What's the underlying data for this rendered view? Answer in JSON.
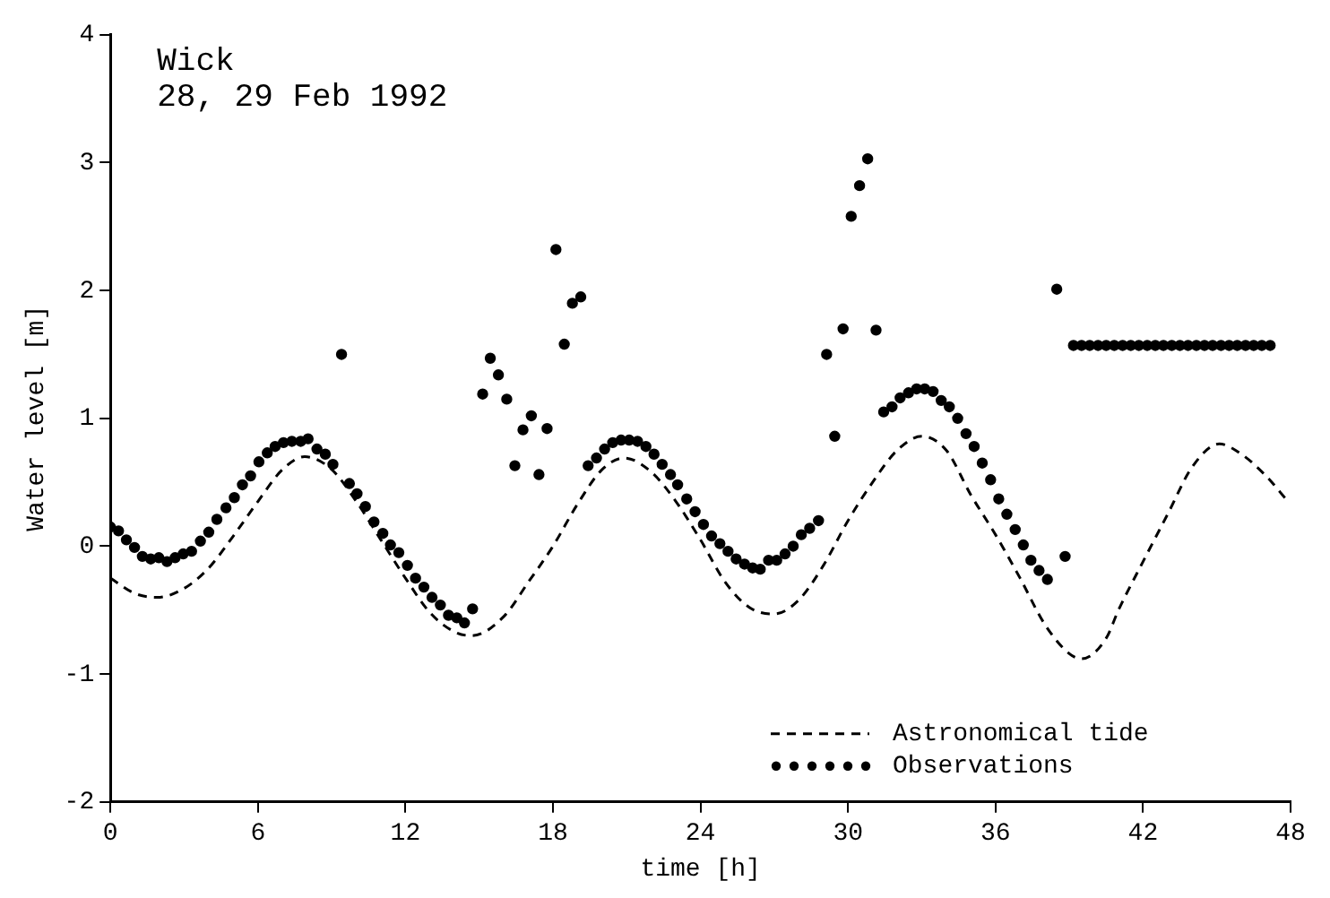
{
  "chart_data": {
    "type": "line",
    "title": "Wick",
    "subtitle": "28, 29 Feb 1992",
    "xlabel": "time [h]",
    "ylabel": "Water level [m]",
    "xlim": [
      0,
      48
    ],
    "xticks": [
      0,
      6,
      12,
      18,
      24,
      30,
      36,
      42,
      48
    ],
    "ylim": [
      -2,
      4
    ],
    "yticks": [
      -2,
      -1,
      0,
      1,
      2,
      3,
      4
    ],
    "grid": false,
    "legend": "bottom right",
    "series": [
      {
        "name": "Astronomical tide",
        "type": "line",
        "color": "#000000",
        "line_style": "dashed",
        "marker": "none",
        "x": [
          0,
          1,
          1.9,
          3,
          4,
          5,
          6,
          7,
          7.9,
          9,
          10,
          11,
          12,
          13,
          14,
          14.7,
          16,
          17,
          18,
          19,
          20,
          20.9,
          22,
          23,
          24,
          25,
          26,
          27,
          28,
          29,
          30,
          31,
          32,
          33,
          34,
          35,
          36,
          37,
          38,
          39,
          39.5,
          40.5,
          41,
          42,
          43,
          44,
          45.1,
          46,
          47,
          47.85
        ],
        "values": [
          -0.25,
          -0.37,
          -0.4,
          -0.33,
          -0.17,
          0.08,
          0.35,
          0.6,
          0.7,
          0.6,
          0.35,
          0.05,
          -0.25,
          -0.52,
          -0.67,
          -0.7,
          -0.55,
          -0.28,
          0,
          0.33,
          0.6,
          0.69,
          0.58,
          0.35,
          0.05,
          -0.28,
          -0.48,
          -0.53,
          -0.42,
          -0.15,
          0.2,
          0.5,
          0.75,
          0.86,
          0.75,
          0.4,
          0.09,
          -0.25,
          -0.61,
          -0.84,
          -0.88,
          -0.72,
          -0.5,
          -0.12,
          0.25,
          0.62,
          0.8,
          0.72,
          0.55,
          0.36
        ]
      },
      {
        "name": "Observations",
        "type": "scatter",
        "color": "#000000",
        "marker": "circle",
        "x": [
          0,
          0.33,
          0.65,
          0.98,
          1.3,
          1.64,
          1.97,
          2.3,
          2.63,
          2.96,
          3.3,
          3.66,
          4,
          4.33,
          4.7,
          5.04,
          5.37,
          5.7,
          6.04,
          6.38,
          6.7,
          7.04,
          7.38,
          7.74,
          8.04,
          8.4,
          8.74,
          9.05,
          9.4,
          9.72,
          10.03,
          10.37,
          10.72,
          11.08,
          11.39,
          11.73,
          12.08,
          12.41,
          12.75,
          13.08,
          13.42,
          13.75,
          14.09,
          14.4,
          14.73,
          15.14,
          15.45,
          15.78,
          16.12,
          16.45,
          16.78,
          17.12,
          17.43,
          17.76,
          18.12,
          18.46,
          18.79,
          19.13,
          19.43,
          19.77,
          20.1,
          20.43,
          20.77,
          21.1,
          21.44,
          21.78,
          22.11,
          22.44,
          22.78,
          23.07,
          23.44,
          23.78,
          24.12,
          24.45,
          24.79,
          25.12,
          25.45,
          25.79,
          26.12,
          26.43,
          26.77,
          27.1,
          27.44,
          27.77,
          28.1,
          28.44,
          28.8,
          29.13,
          29.46,
          29.8,
          30.13,
          30.47,
          30.8,
          31.14,
          31.45,
          31.79,
          32.12,
          32.46,
          32.79,
          33.12,
          33.46,
          33.79,
          34.12,
          34.46,
          34.8,
          35.13,
          35.46,
          35.8,
          36.13,
          36.46,
          36.8,
          37.13,
          37.44,
          37.77,
          38.11,
          38.49,
          38.83,
          39.17,
          39.5,
          39.83,
          40.17,
          40.5,
          40.83,
          41.17,
          41.5,
          41.83,
          42.17,
          42.5,
          42.83,
          43.17,
          43.5,
          43.83,
          44.17,
          44.5,
          44.83,
          45.17,
          45.5,
          45.83,
          46.17,
          46.5,
          46.83,
          47.17
        ],
        "values": [
          0.15,
          0.12,
          0.05,
          -0.01,
          -0.08,
          -0.1,
          -0.09,
          -0.12,
          -0.09,
          -0.06,
          -0.04,
          0.04,
          0.11,
          0.21,
          0.3,
          0.38,
          0.48,
          0.55,
          0.66,
          0.73,
          0.78,
          0.81,
          0.82,
          0.82,
          0.84,
          0.76,
          0.72,
          0.64,
          1.5,
          0.49,
          0.41,
          0.31,
          0.19,
          0.1,
          0.01,
          -0.05,
          -0.15,
          -0.25,
          -0.32,
          -0.4,
          -0.46,
          -0.54,
          -0.56,
          -0.6,
          -0.49,
          1.19,
          1.47,
          1.34,
          1.15,
          0.63,
          0.91,
          1.02,
          0.56,
          0.92,
          2.32,
          1.58,
          1.9,
          1.95,
          0.63,
          0.69,
          0.76,
          0.81,
          0.83,
          0.83,
          0.82,
          0.78,
          0.72,
          0.64,
          0.56,
          0.48,
          0.37,
          0.27,
          0.17,
          0.08,
          0.02,
          -0.04,
          -0.1,
          -0.14,
          -0.17,
          -0.18,
          -0.11,
          -0.11,
          -0.06,
          0,
          0.09,
          0.14,
          0.2,
          1.5,
          0.86,
          1.7,
          2.58,
          2.82,
          3.03,
          1.69,
          1.05,
          1.09,
          1.16,
          1.2,
          1.23,
          1.23,
          1.21,
          1.14,
          1.09,
          1,
          0.88,
          0.78,
          0.65,
          0.52,
          0.37,
          0.25,
          0.13,
          0.01,
          -0.11,
          -0.19,
          -0.26,
          2.01,
          -0.08,
          1.57,
          1.57,
          1.57,
          1.57,
          1.57,
          1.57,
          1.57,
          1.57,
          1.57,
          1.57,
          1.57,
          1.57,
          1.57,
          1.57,
          1.57,
          1.57,
          1.57,
          1.57,
          1.57,
          1.57,
          1.57,
          1.57,
          1.57,
          1.57,
          1.57
        ]
      }
    ]
  }
}
